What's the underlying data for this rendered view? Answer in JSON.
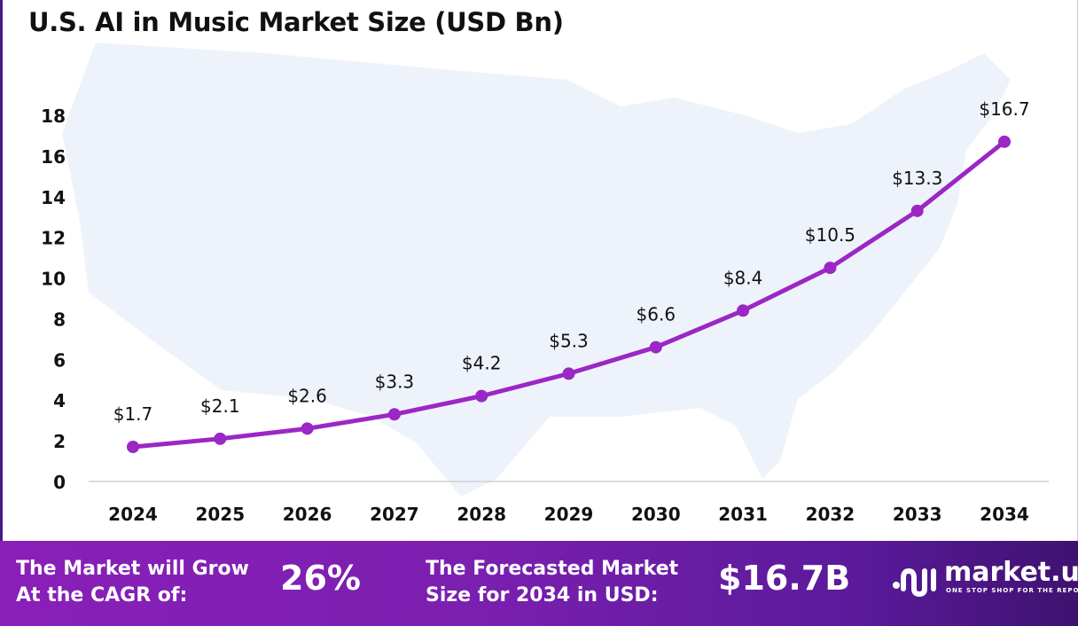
{
  "title": "U.S. AI in Music Market Size (USD Bn)",
  "chart_data": {
    "type": "line",
    "title": "U.S. AI in Music Market Size (USD Bn)",
    "categories": [
      "2024",
      "2025",
      "2026",
      "2027",
      "2028",
      "2029",
      "2030",
      "2031",
      "2032",
      "2033",
      "2034"
    ],
    "values": [
      1.7,
      2.1,
      2.6,
      3.3,
      4.2,
      5.3,
      6.6,
      8.4,
      10.5,
      13.3,
      16.7
    ],
    "data_labels": [
      "$1.7",
      "$2.1",
      "$2.6",
      "$3.3",
      "$4.2",
      "$5.3",
      "$6.6",
      "$8.4",
      "$10.5",
      "$13.3",
      "$16.7"
    ],
    "yticks": [
      "0",
      "2",
      "4",
      "6",
      "8",
      "10",
      "12",
      "14",
      "16",
      "18"
    ],
    "ylim": [
      0,
      18
    ],
    "grid": false,
    "line_color": "#9b27c4",
    "background": "US map silhouette"
  },
  "footer": {
    "cagr_label_1": "The Market will Grow",
    "cagr_label_2": "At the CAGR of:",
    "cagr_value": "26%",
    "forecast_label_1": "The Forecasted Market",
    "forecast_label_2": "Size for 2034 in USD:",
    "forecast_value": "$16.7B",
    "logo_name": "market.us",
    "logo_tagline": "ONE STOP SHOP FOR THE REPORTS"
  }
}
